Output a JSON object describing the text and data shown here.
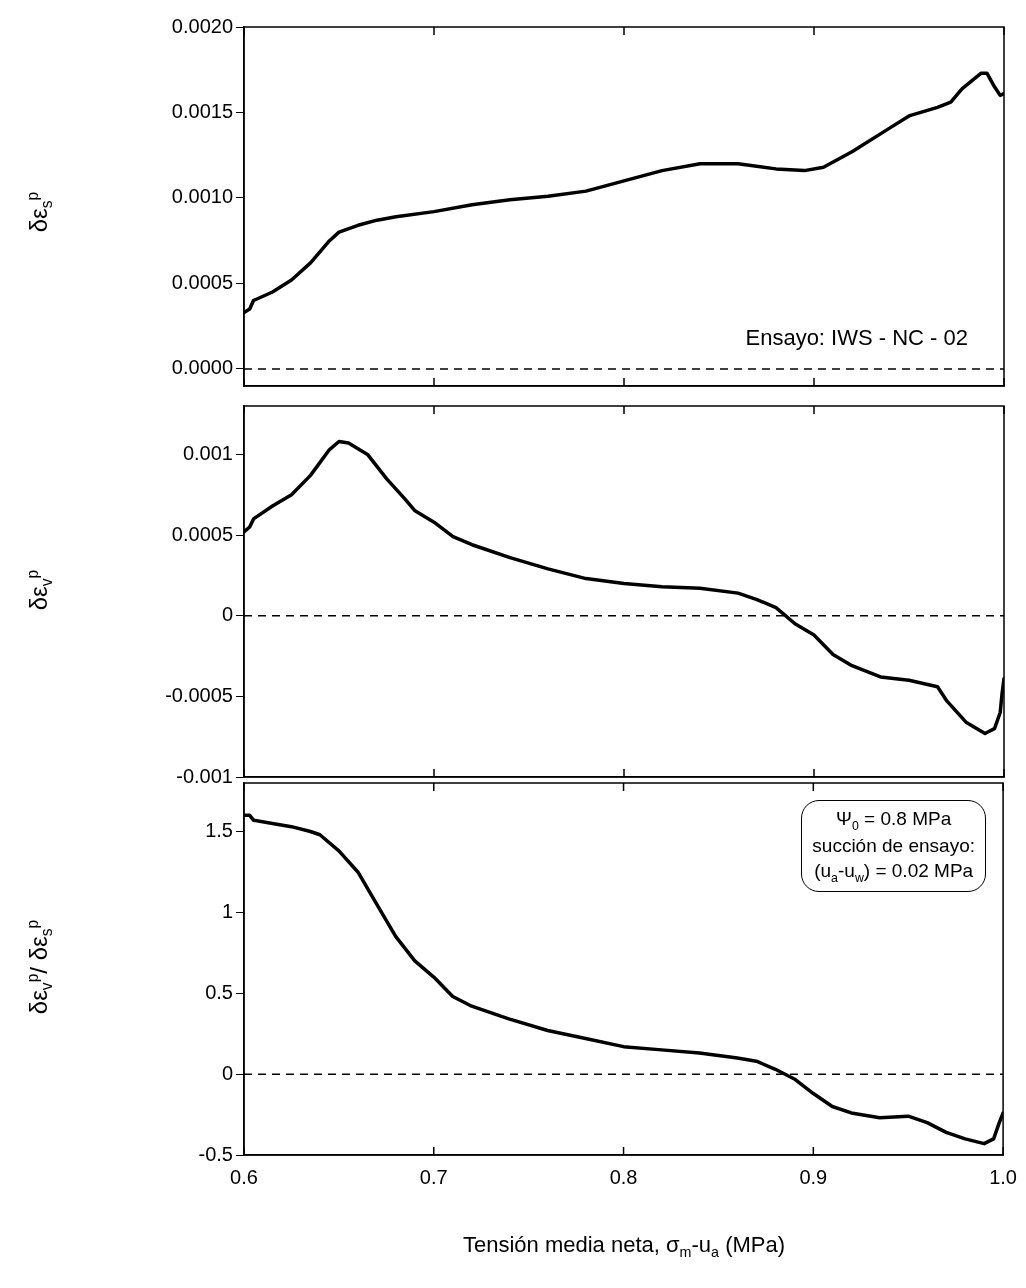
{
  "chart_data": [
    {
      "type": "line",
      "ylabel": "δε$_{s}$$^{p}$",
      "color": "#000000",
      "marker": "none",
      "line_style": "solid",
      "tick_labels": "y",
      "x": [
        0.6,
        0.603,
        0.605,
        0.615,
        0.625,
        0.635,
        0.645,
        0.65,
        0.66,
        0.67,
        0.68,
        0.7,
        0.72,
        0.74,
        0.76,
        0.78,
        0.8,
        0.82,
        0.84,
        0.86,
        0.88,
        0.895,
        0.905,
        0.92,
        0.94,
        0.95,
        0.965,
        0.972,
        0.978,
        0.988,
        0.991,
        0.995,
        0.998,
        1.0
      ],
      "values": [
        0.00033,
        0.00035,
        0.0004,
        0.00045,
        0.00052,
        0.00062,
        0.00075,
        0.0008,
        0.00084,
        0.00087,
        0.00089,
        0.00092,
        0.00096,
        0.00099,
        0.00101,
        0.00104,
        0.0011,
        0.00116,
        0.0012,
        0.0012,
        0.00117,
        0.00116,
        0.00118,
        0.00127,
        0.00141,
        0.00148,
        0.00153,
        0.00156,
        0.00164,
        0.00173,
        0.00173,
        0.00165,
        0.0016,
        0.00161
      ],
      "xlim": [
        0.6,
        1.0
      ],
      "xticks": [
        0.6,
        0.7,
        0.8,
        0.9,
        1
      ],
      "ylim": [
        -0.0001,
        0.002
      ],
      "yticks": [
        {
          "value": 0,
          "label": "0.0000"
        },
        0.0005,
        {
          "value": 0.001,
          "label": "0.0010"
        },
        0.0015,
        {
          "value": 0.002,
          "label": "0.0020"
        }
      ],
      "ref_lines": [
        {
          "axis": "y",
          "value": 0,
          "color": "#000000",
          "line_style": "dashed"
        }
      ],
      "annotations": [
        "Ensayo: IWS - NC - 02"
      ]
    },
    {
      "type": "line",
      "ylabel": "δε$_{v}$$^{p}$",
      "color": "#000000",
      "marker": "none",
      "line_style": "solid",
      "tick_labels": "y",
      "x": [
        0.6,
        0.603,
        0.605,
        0.615,
        0.625,
        0.635,
        0.645,
        0.65,
        0.655,
        0.665,
        0.675,
        0.685,
        0.69,
        0.7,
        0.71,
        0.72,
        0.74,
        0.76,
        0.78,
        0.8,
        0.82,
        0.84,
        0.86,
        0.87,
        0.88,
        0.89,
        0.9,
        0.91,
        0.92,
        0.935,
        0.95,
        0.965,
        0.97,
        0.98,
        0.99,
        0.995,
        0.998,
        0.999,
        1.0
      ],
      "values": [
        0.00052,
        0.00055,
        0.0006,
        0.00068,
        0.00075,
        0.00087,
        0.00103,
        0.00108,
        0.00107,
        0.001,
        0.00085,
        0.00072,
        0.00065,
        0.00058,
        0.00049,
        0.00044,
        0.00036,
        0.00029,
        0.00023,
        0.0002,
        0.00018,
        0.00017,
        0.00014,
        0.0001,
        5e-05,
        -5e-05,
        -0.00012,
        -0.00024,
        -0.00031,
        -0.00038,
        -0.0004,
        -0.00044,
        -0.00053,
        -0.00066,
        -0.00073,
        -0.0007,
        -0.0006,
        -0.00048,
        -0.00039
      ],
      "xlim": [
        0.6,
        1.0
      ],
      "xticks": [
        0.6,
        0.7,
        0.8,
        0.9,
        1
      ],
      "ylim": [
        -0.001,
        0.0013
      ],
      "yticks": [
        -0.001,
        -0.0005,
        0,
        0.0005,
        0.001
      ],
      "ref_lines": [
        {
          "axis": "y",
          "value": 0,
          "color": "#000000",
          "line_style": "dashed"
        }
      ]
    },
    {
      "type": "line",
      "ylabel": "δε$_{v}$$^{p}$/ δε$_{s}$$^{p}$",
      "xlabel": "Tensión media neta, σ$_{m}$-u$_{a}$ (MPa)",
      "color": "#000000",
      "marker": "none",
      "line_style": "solid",
      "x": [
        0.6,
        0.603,
        0.605,
        0.615,
        0.625,
        0.635,
        0.64,
        0.65,
        0.66,
        0.67,
        0.68,
        0.69,
        0.7,
        0.71,
        0.72,
        0.74,
        0.76,
        0.78,
        0.8,
        0.82,
        0.84,
        0.86,
        0.87,
        0.88,
        0.89,
        0.9,
        0.91,
        0.92,
        0.935,
        0.95,
        0.96,
        0.97,
        0.98,
        0.99,
        0.995,
        0.998,
        1.0
      ],
      "values": [
        1.6,
        1.6,
        1.57,
        1.55,
        1.53,
        1.5,
        1.48,
        1.38,
        1.25,
        1.05,
        0.85,
        0.7,
        0.6,
        0.48,
        0.42,
        0.34,
        0.27,
        0.22,
        0.17,
        0.15,
        0.13,
        0.1,
        0.08,
        0.03,
        -0.03,
        -0.12,
        -0.2,
        -0.24,
        -0.27,
        -0.26,
        -0.3,
        -0.36,
        -0.4,
        -0.43,
        -0.4,
        -0.3,
        -0.24
      ],
      "xlim": [
        0.6,
        1.0
      ],
      "xticks": [
        0.6,
        0.7,
        0.8,
        0.9,
        {
          "value": 1.0,
          "label": "1.0"
        }
      ],
      "ylim": [
        -0.5,
        1.8
      ],
      "yticks": [
        -0.5,
        0,
        0.5,
        1,
        1.5
      ],
      "ref_lines": [
        {
          "axis": "y",
          "value": 0,
          "color": "#000000",
          "line_style": "dashed"
        }
      ],
      "annotations": [
        "Ψ$_{0}$ = 0.8 MPa",
        "succión de ensayo:",
        "(u$_{a}$-u$_{w}$) = 0.02 MPa"
      ]
    }
  ]
}
